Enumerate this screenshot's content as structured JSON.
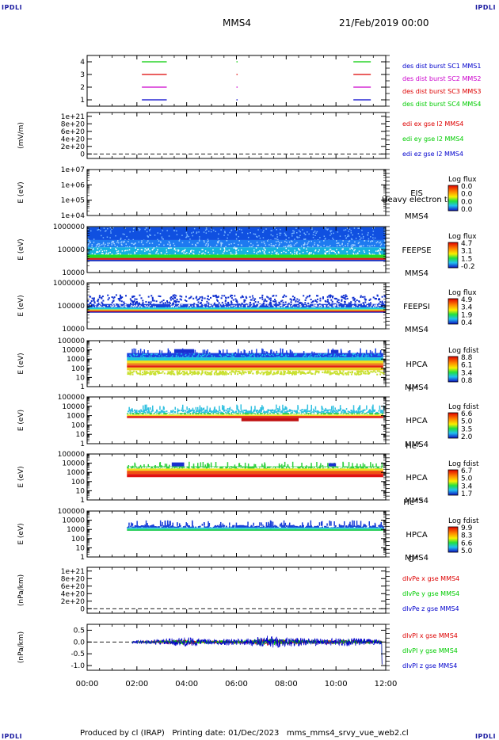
{
  "header": {
    "corner_tl": "IPDLI",
    "corner_tr": "IPDLI",
    "corner_bl": "IPDLI",
    "corner_br": "IPDLI",
    "mission": "MMS4",
    "date": "21/Feb/2019 00:00"
  },
  "footer": {
    "text": "Produced by cl (IRAP)   Printing date: 01/Dec/2023   mms_mms4_srvy_vue_web2.cl"
  },
  "colors": {
    "blue": "#0000cc",
    "red": "#dd0000",
    "green": "#00cc00",
    "magenta": "#cc00cc"
  },
  "chart_data": [
    {
      "type": "line",
      "id": "burst",
      "ylabel": "",
      "ytick_labels": [
        "4",
        "3",
        "2",
        "1"
      ],
      "ylim": [
        0.5,
        4.5
      ],
      "legend": [
        {
          "name": "des dist burst SC1 MMS1",
          "color": "#0000cc"
        },
        {
          "name": "des dist burst SC2 MMS2",
          "color": "#cc00cc"
        },
        {
          "name": "des dist burst SC3 MMS3",
          "color": "#dd0000"
        },
        {
          "name": "des dist burst SC4 MMS4",
          "color": "#00cc00"
        }
      ],
      "series": [
        {
          "level": 4,
          "color": "#00cc00",
          "intervals": [
            [
              2.2,
              3.2
            ],
            [
              6.0,
              6.05
            ],
            [
              10.7,
              11.4
            ]
          ]
        },
        {
          "level": 3,
          "color": "#dd0000",
          "intervals": [
            [
              2.2,
              3.2
            ],
            [
              6.0,
              6.05
            ],
            [
              10.7,
              11.4
            ]
          ]
        },
        {
          "level": 2,
          "color": "#cc00cc",
          "intervals": [
            [
              2.2,
              3.2
            ],
            [
              6.0,
              6.05
            ],
            [
              10.7,
              11.4
            ]
          ]
        },
        {
          "level": 1,
          "color": "#0000cc",
          "intervals": [
            [
              2.2,
              3.2
            ],
            [
              6.0,
              6.05
            ],
            [
              10.7,
              11.4
            ]
          ]
        }
      ]
    },
    {
      "type": "line",
      "id": "edi",
      "ylabel": "(mV/m)",
      "ytick_labels": [
        "1e+21",
        "8e+20",
        "6e+20",
        "4e+20",
        "2e+20",
        "0"
      ],
      "ytick_values": [
        1e+21,
        8e+20,
        6e+20,
        4e+20,
        2e+20,
        0
      ],
      "ylim": [
        -1.2e+20,
        1.1e+21
      ],
      "legend": [
        {
          "name": "edi ex gse l2 MMS4",
          "color": "#dd0000"
        },
        {
          "name": "edi ey gse l2 MMS4",
          "color": "#00cc00"
        },
        {
          "name": "edi ez gse l2 MMS4",
          "color": "#0000cc"
        }
      ]
    },
    {
      "type": "heatmap",
      "id": "eis",
      "ylabel": "E (eV)",
      "ytick_labels": [
        "1e+07",
        "1e+06",
        "1e+05",
        "1e+04"
      ],
      "ylim": [
        10000.0,
        10000000.0
      ],
      "instrument": "EIS",
      "sc": "MMS4",
      "overlay": "Heavy electron to",
      "cbar_title": "Log flux",
      "cbar_labels": [
        "0.0",
        "0.0",
        "0.0",
        "0.0"
      ],
      "empty": true
    },
    {
      "type": "heatmap",
      "id": "feepse",
      "ylabel": "E (eV)",
      "ytick_labels": [
        "1000000",
        "100000",
        "10000"
      ],
      "ylim": [
        10000.0,
        1000000.0
      ],
      "instrument": "FEEPSE",
      "sc": "MMS4",
      "cbar_title": "Log flux",
      "cbar_labels": [
        "4.7",
        "3.1",
        "1.5",
        "-0.2"
      ],
      "time_range": [
        0,
        12
      ],
      "bands": [
        {
          "e_low": 260000,
          "e_high": 950000,
          "color": "#1050e0",
          "speckle": "#7ab8ff"
        },
        {
          "e_low": 125000,
          "e_high": 260000,
          "color": "#1e7af0",
          "speckle": "#a8d4ff"
        },
        {
          "e_low": 60000,
          "e_high": 125000,
          "color": "#16b0e0",
          "speckle": "#ffffff"
        },
        {
          "e_low": 43000,
          "e_high": 60000,
          "color": "#22dd22",
          "speckle": ""
        },
        {
          "e_low": 36000,
          "e_high": 43000,
          "color": "#e01010",
          "speckle": ""
        },
        {
          "e_low": 31000,
          "e_high": 36000,
          "color": "#1a30c0",
          "speckle": ""
        }
      ]
    },
    {
      "type": "heatmap",
      "id": "feepsi",
      "ylabel": "E (eV)",
      "ytick_labels": [
        "1000000",
        "100000",
        "10000"
      ],
      "ylim": [
        10000.0,
        1000000.0
      ],
      "instrument": "FEEPSI",
      "sc": "MMS4",
      "cbar_title": "Log flux",
      "cbar_labels": [
        "4.9",
        "3.4",
        "1.9",
        "0.4"
      ],
      "time_range": [
        0,
        12
      ],
      "bands": [
        {
          "e_low": 120000,
          "e_high": 320000,
          "color": "#1030d0",
          "speckle": "",
          "sparse": true
        },
        {
          "e_low": 85000,
          "e_high": 120000,
          "color": "#1a40d8",
          "speckle": "#ffffff"
        },
        {
          "e_low": 70000,
          "e_high": 85000,
          "color": "#20c8e0",
          "speckle": ""
        },
        {
          "e_low": 62000,
          "e_high": 70000,
          "color": "#f0e020",
          "speckle": ""
        },
        {
          "e_low": 55000,
          "e_high": 62000,
          "color": "#e01010",
          "speckle": ""
        },
        {
          "e_low": 50000,
          "e_high": 55000,
          "color": "#1a30c0",
          "speckle": ""
        }
      ]
    },
    {
      "type": "heatmap",
      "id": "hpca-h",
      "ylabel": "E (eV)",
      "ytick_labels": [
        "100000",
        "10000",
        "1000",
        "100",
        "10",
        "1"
      ],
      "ylim": [
        1,
        100000.0
      ],
      "instrument": "HPCA",
      "sc": "MMS4",
      "species": "H",
      "species_sup": "+",
      "cbar_title": "Log fdist",
      "cbar_labels": [
        "8.8",
        "6.1",
        "3.4",
        "0.8"
      ],
      "time_range": [
        1.6,
        11.9
      ],
      "bands": [
        {
          "e_low": 1500,
          "e_high": 4500,
          "color": "#1a40e0",
          "speckle": "#20c0f0"
        },
        {
          "e_low": 700,
          "e_high": 1500,
          "color": "#20c8d8",
          "speckle": ""
        },
        {
          "e_low": 350,
          "e_high": 700,
          "color": "#f0e020",
          "speckle": ""
        },
        {
          "e_low": 200,
          "e_high": 350,
          "color": "#f08020",
          "speckle": ""
        },
        {
          "e_low": 120,
          "e_high": 200,
          "color": "#e02010",
          "speckle": ""
        },
        {
          "e_low": 60,
          "e_high": 120,
          "color": "#f0d020",
          "speckle": ""
        },
        {
          "e_low": 25,
          "e_high": 60,
          "color": "#c8e030",
          "speckle": "#ffffff",
          "sparse": true
        }
      ],
      "blobs": [
        {
          "t0": 3.5,
          "t1": 4.3,
          "e_low": 4500,
          "e_high": 12000,
          "color": "#1a30d0"
        },
        {
          "t0": 9.8,
          "t1": 10.1,
          "e_low": 4500,
          "e_high": 10000,
          "color": "#1a30d0"
        }
      ]
    },
    {
      "type": "heatmap",
      "id": "hpca-he",
      "ylabel": "E (eV)",
      "ytick_labels": [
        "100000",
        "10000",
        "1000",
        "100",
        "10",
        "1"
      ],
      "ylim": [
        1,
        100000.0
      ],
      "instrument": "HPCA",
      "sc": "MMS4",
      "species": "He",
      "species_sup": "+",
      "cbar_title": "Log fdist",
      "cbar_labels": [
        "6.6",
        "5.0",
        "3.5",
        "2.0"
      ],
      "time_range": [
        1.6,
        11.9
      ],
      "bands": [
        {
          "e_low": 2000,
          "e_high": 5000,
          "color": "#30c0e0",
          "speckle": "#ffffff",
          "sparse": true
        },
        {
          "e_low": 1300,
          "e_high": 2000,
          "color": "#30d060",
          "speckle": "#ffffff"
        },
        {
          "e_low": 900,
          "e_high": 1300,
          "color": "#f0e020",
          "speckle": ""
        },
        {
          "e_low": 550,
          "e_high": 900,
          "color": "#e02010",
          "speckle": ""
        }
      ],
      "blobs": [
        {
          "t0": 6.2,
          "t1": 8.5,
          "e_low": 250,
          "e_high": 550,
          "color": "#c01010"
        }
      ]
    },
    {
      "type": "heatmap",
      "id": "hpca-hepp",
      "ylabel": "E (eV)",
      "ytick_labels": [
        "100000",
        "10000",
        "1000",
        "100",
        "10",
        "1"
      ],
      "ylim": [
        1,
        100000.0
      ],
      "instrument": "HPCA",
      "sc": "MMS4",
      "species": "He",
      "species_sup": "++",
      "cbar_title": "Log fdist",
      "cbar_labels": [
        "6.7",
        "5.0",
        "3.4",
        "1.7"
      ],
      "time_range": [
        1.6,
        11.9
      ],
      "bands": [
        {
          "e_low": 2600,
          "e_high": 4500,
          "color": "#30d040",
          "speckle": "#ffffff"
        },
        {
          "e_low": 1500,
          "e_high": 2600,
          "color": "#f0e020",
          "speckle": ""
        },
        {
          "e_low": 650,
          "e_high": 1500,
          "color": "#f05010",
          "speckle": ""
        },
        {
          "e_low": 300,
          "e_high": 650,
          "color": "#e01010",
          "speckle": ""
        }
      ],
      "blobs": [
        {
          "t0": 3.4,
          "t1": 3.9,
          "e_low": 4500,
          "e_high": 12000,
          "color": "#1a30d0"
        },
        {
          "t0": 9.7,
          "t1": 10.0,
          "e_low": 4500,
          "e_high": 10000,
          "color": "#1a30d0"
        }
      ]
    },
    {
      "type": "heatmap",
      "id": "hpca-o",
      "ylabel": "E (eV)",
      "ytick_labels": [
        "100000",
        "10000",
        "1000",
        "100",
        "10",
        "1"
      ],
      "ylim": [
        1,
        100000.0
      ],
      "instrument": "HPCA",
      "sc": "MMS4",
      "species": "O",
      "species_sup": "+",
      "cbar_title": "Log fdist",
      "cbar_labels": [
        "9.9",
        "8.3",
        "6.6",
        "5.0"
      ],
      "time_range": [
        1.6,
        11.9
      ],
      "bands": [
        {
          "e_low": 1600,
          "e_high": 3000,
          "color": "#1a40d8",
          "speckle": "#ffffff",
          "sparse": true
        },
        {
          "e_low": 1100,
          "e_high": 1600,
          "color": "#30c8e0",
          "speckle": ""
        },
        {
          "e_low": 700,
          "e_high": 1100,
          "color": "#30d060",
          "speckle": ""
        }
      ],
      "blobs": []
    },
    {
      "type": "line",
      "id": "divpe",
      "ylabel": "(nPa/km)",
      "ytick_labels": [
        "1e+21",
        "8e+20",
        "6e+20",
        "4e+20",
        "2e+20",
        "0"
      ],
      "ytick_values": [
        1e+21,
        8e+20,
        6e+20,
        4e+20,
        2e+20,
        0
      ],
      "ylim": [
        -1.2e+20,
        1.1e+21
      ],
      "legend": [
        {
          "name": "dIvPe x gse MMS4",
          "color": "#dd0000"
        },
        {
          "name": "dIvPe y gse MMS4",
          "color": "#00cc00"
        },
        {
          "name": "dIvPe z gse MMS4",
          "color": "#0000cc"
        }
      ]
    },
    {
      "type": "line",
      "id": "divpi",
      "ylabel": "(nPa/km)",
      "ytick_labels": [
        "0.5",
        "0.0",
        "-0.5",
        "-1.0"
      ],
      "ytick_values": [
        0.5,
        0.0,
        -0.5,
        -1.0
      ],
      "ylim": [
        -1.2,
        0.75
      ],
      "legend": [
        {
          "name": "dIvPI x gse MMS4",
          "color": "#dd0000"
        },
        {
          "name": "dIvPI y gse MMS4",
          "color": "#00cc00"
        },
        {
          "name": "dIvPI z gse MMS4",
          "color": "#0000cc"
        }
      ],
      "time_range": [
        1.8,
        11.85
      ],
      "noise_envelope": [
        {
          "t": 1.8,
          "amp": 0.06
        },
        {
          "t": 3.0,
          "amp": 0.12
        },
        {
          "t": 4.0,
          "amp": 0.2
        },
        {
          "t": 5.0,
          "amp": 0.12
        },
        {
          "t": 6.5,
          "amp": 0.15
        },
        {
          "t": 7.2,
          "amp": 0.28
        },
        {
          "t": 8.0,
          "amp": 0.2
        },
        {
          "t": 9.5,
          "amp": 0.14
        },
        {
          "t": 10.5,
          "amp": 0.18
        },
        {
          "t": 11.85,
          "amp": 0.1
        }
      ],
      "end_dip": -0.95
    }
  ],
  "xaxis": {
    "tick_labels": [
      "00:00",
      "02:00",
      "04:00",
      "06:00",
      "08:00",
      "10:00",
      "12:00"
    ],
    "tick_values": [
      0,
      2,
      4,
      6,
      8,
      10,
      12
    ]
  }
}
